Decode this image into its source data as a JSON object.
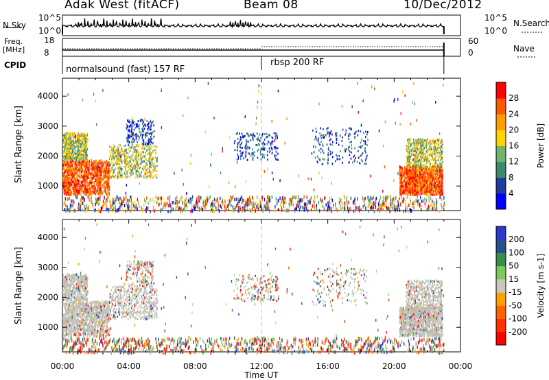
{
  "header": {
    "title": "Adak West (fitACF)",
    "beam": "Beam 08",
    "date": "10/Dec/2012"
  },
  "noise_panel": {
    "left_label": "N.Sky",
    "right_label": "N.Search",
    "ticks": [
      "10^5",
      "10^0"
    ]
  },
  "freq_panel": {
    "left_label_1": "Freq.",
    "left_label_2": "[MHz]",
    "left_ticks": [
      "18",
      "8"
    ],
    "right_label": "Nave",
    "right_ticks": [
      "60",
      "0"
    ]
  },
  "cpid_panel": {
    "label": "CPID",
    "mode_1": "normalsound (fast) 157 RF",
    "mode_2": "rbsp 200 RF"
  },
  "colors": {
    "power": [
      "#0000ff",
      "#1e3c9e",
      "#3c8c6c",
      "#72b46e",
      "#ffd200",
      "#ff9c00",
      "#ff5a00",
      "#ff0000"
    ],
    "velocity": [
      "#2a3cc8",
      "#24508c",
      "#3a8c4c",
      "#7cc85a",
      "#c8c8c0",
      "#ffa000",
      "#ff6400",
      "#ff3000",
      "#ff0000"
    ],
    "ground_scatter": "#c0c0b8"
  },
  "chart_data": {
    "type": "heatmap",
    "xlabel": "Time UT",
    "x_ticks": [
      "00:00",
      "04:00",
      "08:00",
      "12:00",
      "16:00",
      "20:00",
      "00:00"
    ],
    "x_range_hours": [
      0,
      24
    ],
    "ylabel": "Slant Range [km]",
    "y_ticks": [
      "1000",
      "2000",
      "3000",
      "4000"
    ],
    "y_range": [
      180,
      4600
    ],
    "power_panel": {
      "colorbar_label": "Power [dB]",
      "colorbar_ticks": [
        "4",
        "8",
        "12",
        "16",
        "20",
        "24",
        "28"
      ],
      "colorbar_range": [
        0,
        30
      ]
    },
    "velocity_panel": {
      "colorbar_label": "Velocity [m s-1]",
      "colorbar_ticks": [
        "200",
        "100",
        "50",
        "15",
        "-15",
        "-50",
        "-100",
        "-200"
      ]
    },
    "scatter_regions": [
      {
        "t0": 0.0,
        "t1": 2.8,
        "r0": 750,
        "r1": 1900,
        "kind": "strong"
      },
      {
        "t0": 2.8,
        "t1": 5.7,
        "r0": 1300,
        "r1": 2400,
        "kind": "mid"
      },
      {
        "t0": 3.8,
        "t1": 5.5,
        "r0": 2400,
        "r1": 3250,
        "kind": "weak"
      },
      {
        "t0": 0.0,
        "t1": 1.5,
        "r0": 1900,
        "r1": 2800,
        "kind": "mid"
      },
      {
        "t0": 10.3,
        "t1": 13.0,
        "r0": 1900,
        "r1": 2800,
        "kind": "weak"
      },
      {
        "t0": 15.0,
        "t1": 18.4,
        "r0": 1750,
        "r1": 3000,
        "kind": "weak"
      },
      {
        "t0": 20.3,
        "t1": 22.9,
        "r0": 750,
        "r1": 1700,
        "kind": "strong"
      },
      {
        "t0": 20.7,
        "t1": 22.9,
        "r0": 1600,
        "r1": 2600,
        "kind": "mid"
      }
    ]
  }
}
